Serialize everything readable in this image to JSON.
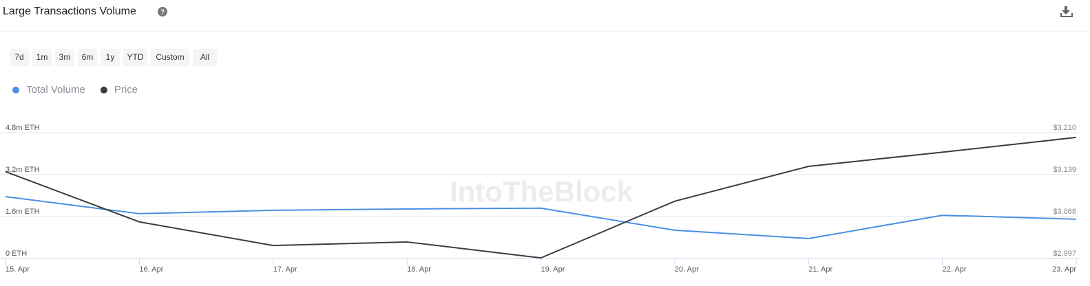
{
  "chart_data": {
    "type": "line",
    "title": "Large Transactions Volume",
    "range_buttons": [
      "7d",
      "1m",
      "3m",
      "6m",
      "1y",
      "YTD",
      "Custom",
      "All"
    ],
    "watermark": "IntoTheBlock",
    "categories": [
      "15. Apr",
      "16. Apr",
      "17. Apr",
      "18. Apr",
      "19. Apr",
      "20. Apr",
      "21. Apr",
      "22. Apr",
      "23. Apr"
    ],
    "series": [
      {
        "name": "Total Volume",
        "color": "#4a8fe2",
        "values": [
          2360000,
          1710000,
          1840000,
          1890000,
          1920000,
          1080000,
          760000,
          1650000,
          1500000
        ]
      },
      {
        "name": "Price",
        "color": "#3a3d42",
        "axis": "y2",
        "values": [
          3144,
          3059,
          3019,
          3025,
          2998,
          3094,
          3153,
          3177,
          3202
        ]
      }
    ],
    "ylim": [
      0,
      4800000
    ],
    "yticks": [
      {
        "value": 0,
        "label": "0 ETH"
      },
      {
        "value": 1600000,
        "label": "1.6m ETH"
      },
      {
        "value": 3200000,
        "label": "3.2m ETH"
      },
      {
        "value": 4800000,
        "label": "4.8m ETH"
      }
    ],
    "y2lim": [
      2997,
      3210
    ],
    "y2ticks": [
      {
        "value": 2997,
        "label": "$2,997"
      },
      {
        "value": 3068,
        "label": "$3,068"
      },
      {
        "value": 3139,
        "label": "$3,139"
      },
      {
        "value": 3210,
        "label": "$3,210"
      }
    ],
    "grid": true
  }
}
